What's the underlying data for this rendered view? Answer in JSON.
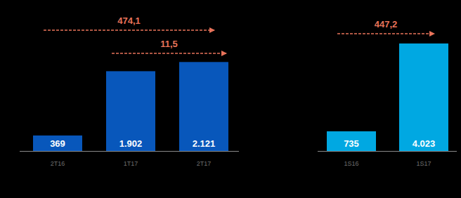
{
  "chart_data": [
    {
      "type": "bar",
      "categories": [
        "2T16",
        "1T17",
        "2T17"
      ],
      "values": [
        369,
        1902,
        2121
      ],
      "value_labels": [
        "369",
        "1.902",
        "2.121"
      ],
      "color": "#0857bb",
      "ylim": [
        0,
        3600
      ],
      "data_labels": true,
      "tick_labels": "x",
      "annotations": [
        {
          "text": "474,1",
          "from": "2T16",
          "to": "2T17"
        },
        {
          "text": "11,5",
          "from": "1T17",
          "to": "2T17"
        }
      ]
    },
    {
      "type": "bar",
      "categories": [
        "1S16",
        "1S17"
      ],
      "values": [
        735,
        4023
      ],
      "value_labels": [
        "735",
        "4.023"
      ],
      "color": "#00a8e2",
      "ylim": [
        0,
        5650
      ],
      "data_labels": true,
      "tick_labels": "x",
      "annotations": [
        {
          "text": "447,2",
          "from": "1S16",
          "to": "1S17"
        }
      ]
    }
  ]
}
